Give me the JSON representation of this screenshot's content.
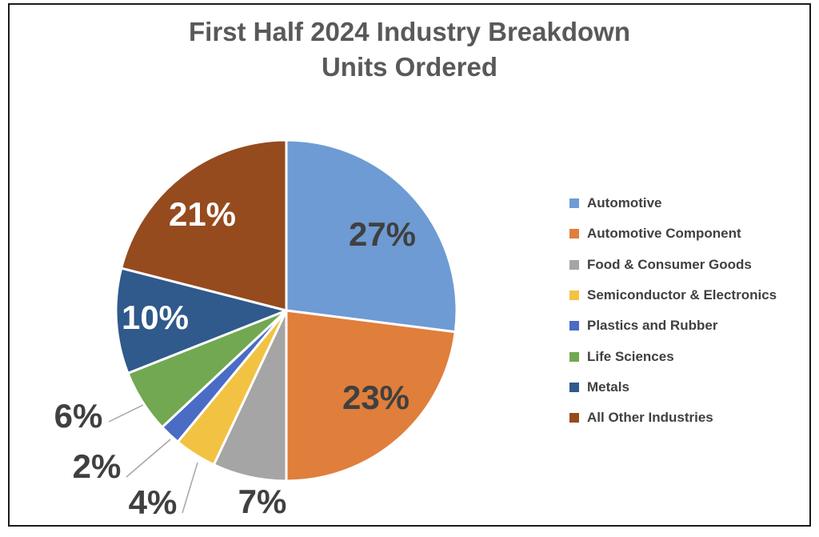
{
  "title": {
    "line1": "First Half 2024 Industry Breakdown",
    "line2": "Units Ordered"
  },
  "chart_data": {
    "type": "pie",
    "title": "First Half 2024 Industry Breakdown Units Ordered",
    "legend_position": "right",
    "start_angle_deg": 0,
    "direction": "clockwise",
    "slices": [
      {
        "label": "Automotive",
        "value": 27,
        "data_label": "27%",
        "color": "#6E9BD3",
        "label_placement": "inside"
      },
      {
        "label": "Automotive Component",
        "value": 23,
        "data_label": "23%",
        "color": "#E07E3C",
        "label_placement": "inside"
      },
      {
        "label": "Food & Consumer Goods",
        "value": 7,
        "data_label": "7%",
        "color": "#A5A5A5",
        "label_placement": "outside"
      },
      {
        "label": "Semiconductor & Electronics",
        "value": 4,
        "data_label": "4%",
        "color": "#F2C243",
        "label_placement": "outside-leader"
      },
      {
        "label": "Plastics and Rubber",
        "value": 2,
        "data_label": "2%",
        "color": "#4A6CC5",
        "label_placement": "outside-leader"
      },
      {
        "label": "Life Sciences",
        "value": 6,
        "data_label": "6%",
        "color": "#72A851",
        "label_placement": "outside-leader"
      },
      {
        "label": "Metals",
        "value": 10,
        "data_label": "10%",
        "color": "#30598C",
        "label_placement": "inside"
      },
      {
        "label": "All Other Industries",
        "value": 21,
        "data_label": "21%",
        "color": "#954B1E",
        "label_placement": "inside"
      }
    ]
  },
  "styles": {
    "title_color": "#595959",
    "label_dark": "#404040",
    "label_light": "#FFFFFF",
    "legend_text_color": "#404040",
    "leader_line_color": "#A6A6A6",
    "slice_border_color": "#FFFFFF",
    "frame_border_color": "#1B1B1B",
    "background": "#FFFFFF"
  }
}
